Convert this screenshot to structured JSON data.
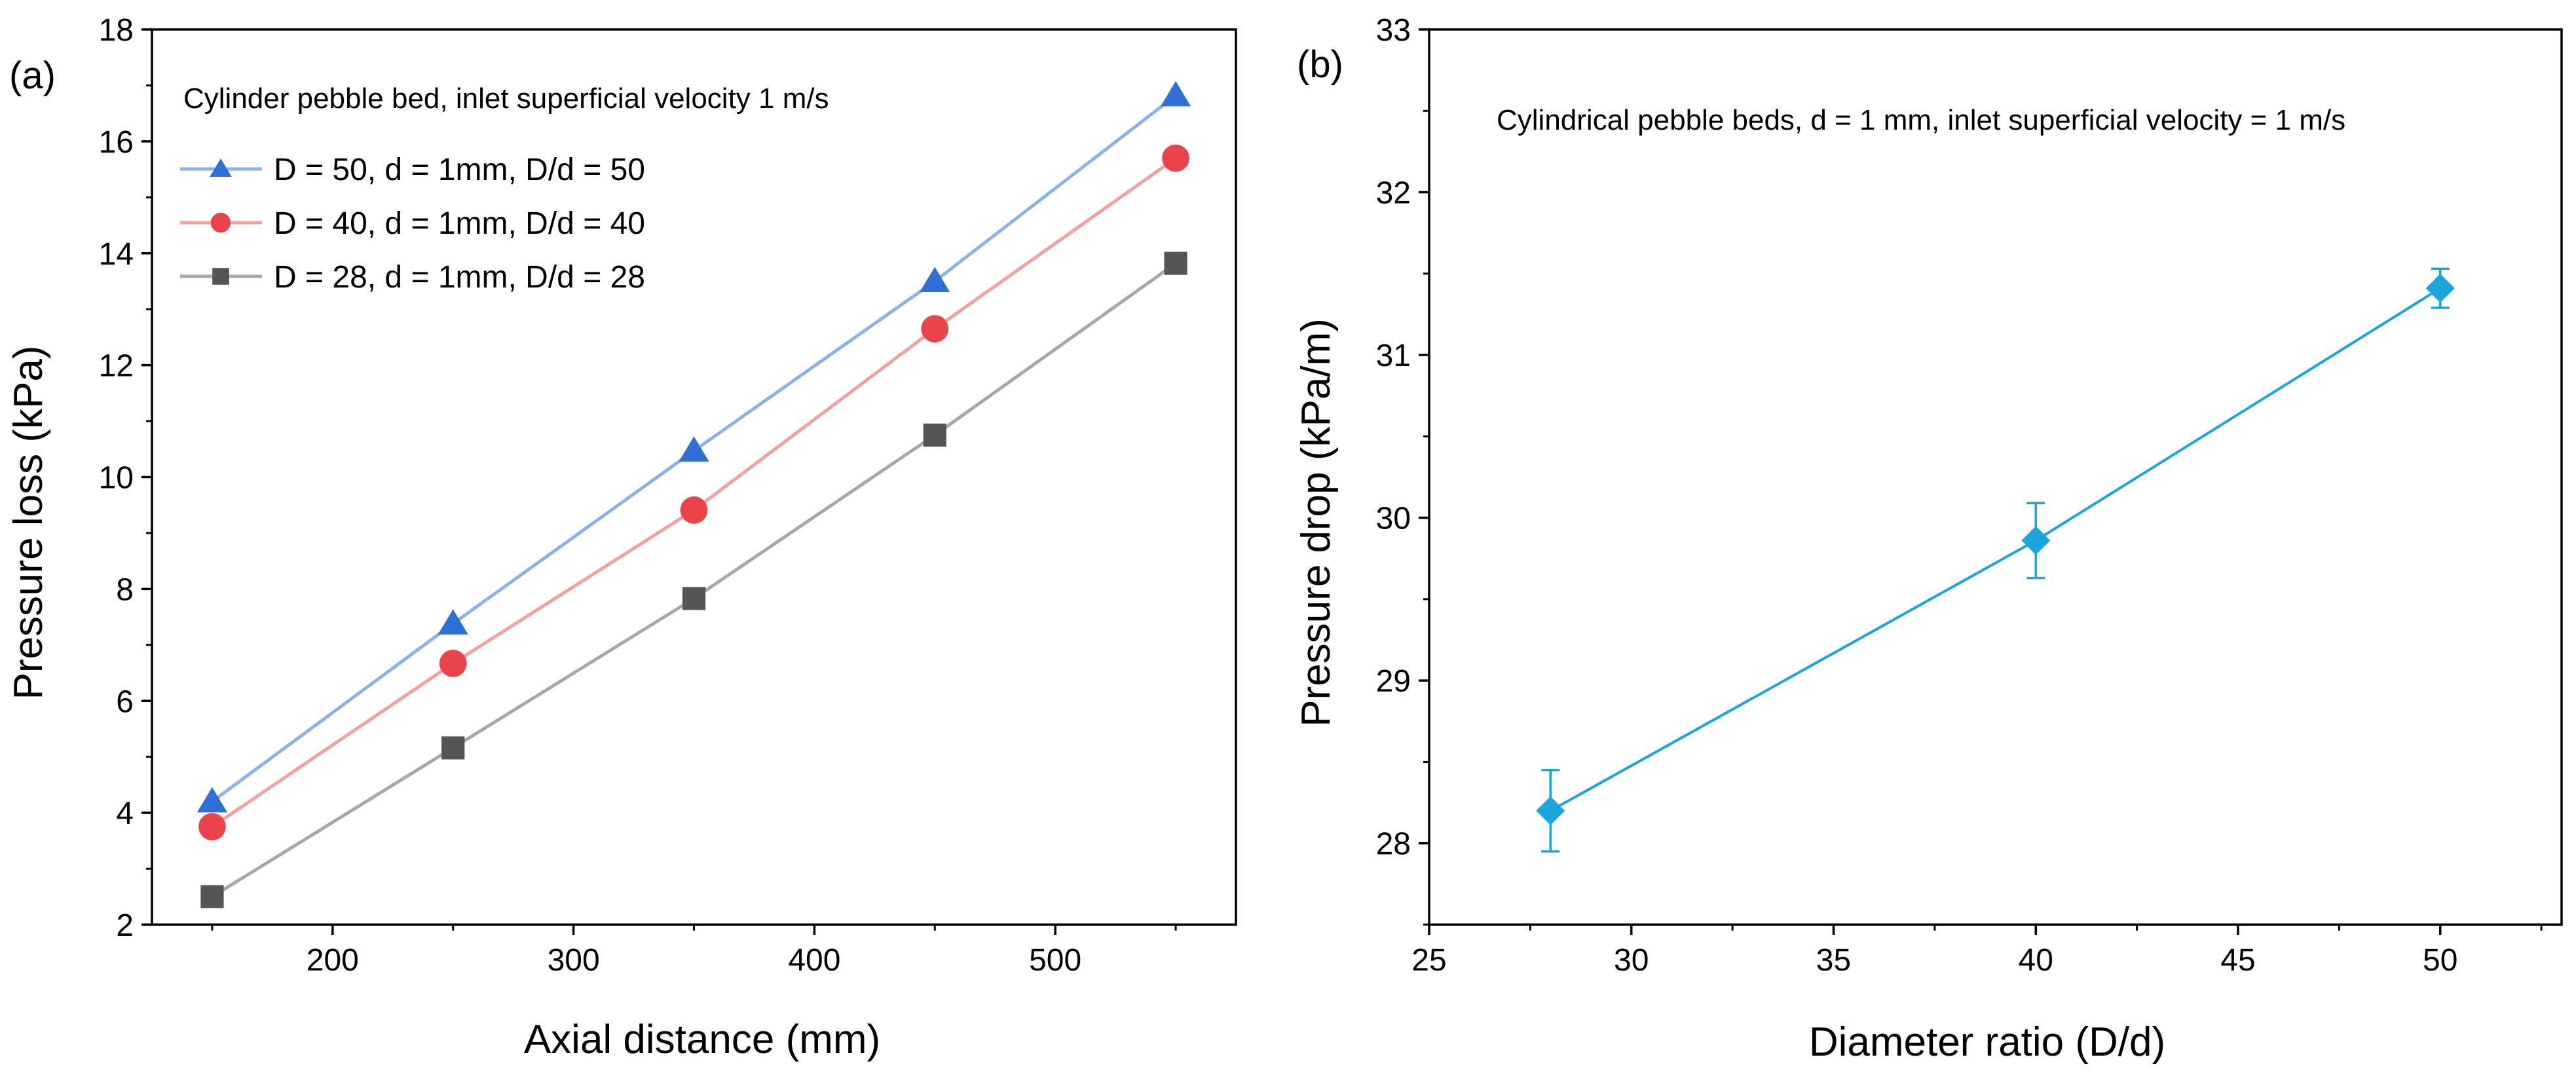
{
  "chart_data": [
    {
      "type": "line",
      "panel_label": "(a)",
      "title": "",
      "annotation": "Cylinder pebble bed,  inlet superficial velocity 1 m/s",
      "xlabel": "Axial distance (mm)",
      "ylabel": "Pressure  loss (kPa)",
      "xlim": [
        125,
        575
      ],
      "ylim": [
        2,
        18
      ],
      "xticks": [
        200,
        300,
        400,
        500
      ],
      "yticks": [
        2,
        4,
        6,
        8,
        10,
        12,
        14,
        16,
        18
      ],
      "grid": false,
      "legend_position": "top-left",
      "x": [
        150,
        250,
        350,
        450,
        550
      ],
      "series": [
        {
          "name": "D = 50, d = 1mm, D/d = 50",
          "marker": "triangle",
          "line_color": "#8ab4e8",
          "marker_color": "#2f6fd6",
          "values": [
            4.2,
            7.38,
            10.47,
            13.5,
            16.82
          ]
        },
        {
          "name": "D = 40, d = 1mm, D/d = 40",
          "marker": "circle",
          "line_color": "#f4a0a0",
          "marker_color": "#e8444a",
          "values": [
            3.75,
            6.67,
            9.41,
            12.65,
            15.7
          ]
        },
        {
          "name": "D = 28, d = 1mm, D/d = 28",
          "marker": "square",
          "line_color": "#a8a8a8",
          "marker_color": "#555555",
          "values": [
            2.5,
            5.16,
            7.83,
            10.75,
            13.82
          ]
        }
      ]
    },
    {
      "type": "line",
      "panel_label": "(b)",
      "title": "",
      "annotation": "Cylindrical pebble beds, d = 1 mm, inlet superficial velocity = 1 m/s",
      "xlabel": "Diameter ratio (D/d)",
      "ylabel": "Pressure drop (kPa/m)",
      "xlim": [
        25,
        53
      ],
      "ylim": [
        27.5,
        33
      ],
      "xticks": [
        25,
        30,
        35,
        40,
        45,
        50
      ],
      "yticks": [
        28,
        29,
        30,
        31,
        32,
        33
      ],
      "grid": false,
      "legend_position": "none",
      "x": [
        28,
        40,
        50
      ],
      "series": [
        {
          "name": "Pressure drop",
          "marker": "diamond",
          "line_color": "#1aa6dc",
          "marker_color": "#1aa6dc",
          "values": [
            28.2,
            29.86,
            31.41
          ],
          "errors": [
            0.25,
            0.23,
            0.12
          ]
        }
      ]
    }
  ]
}
